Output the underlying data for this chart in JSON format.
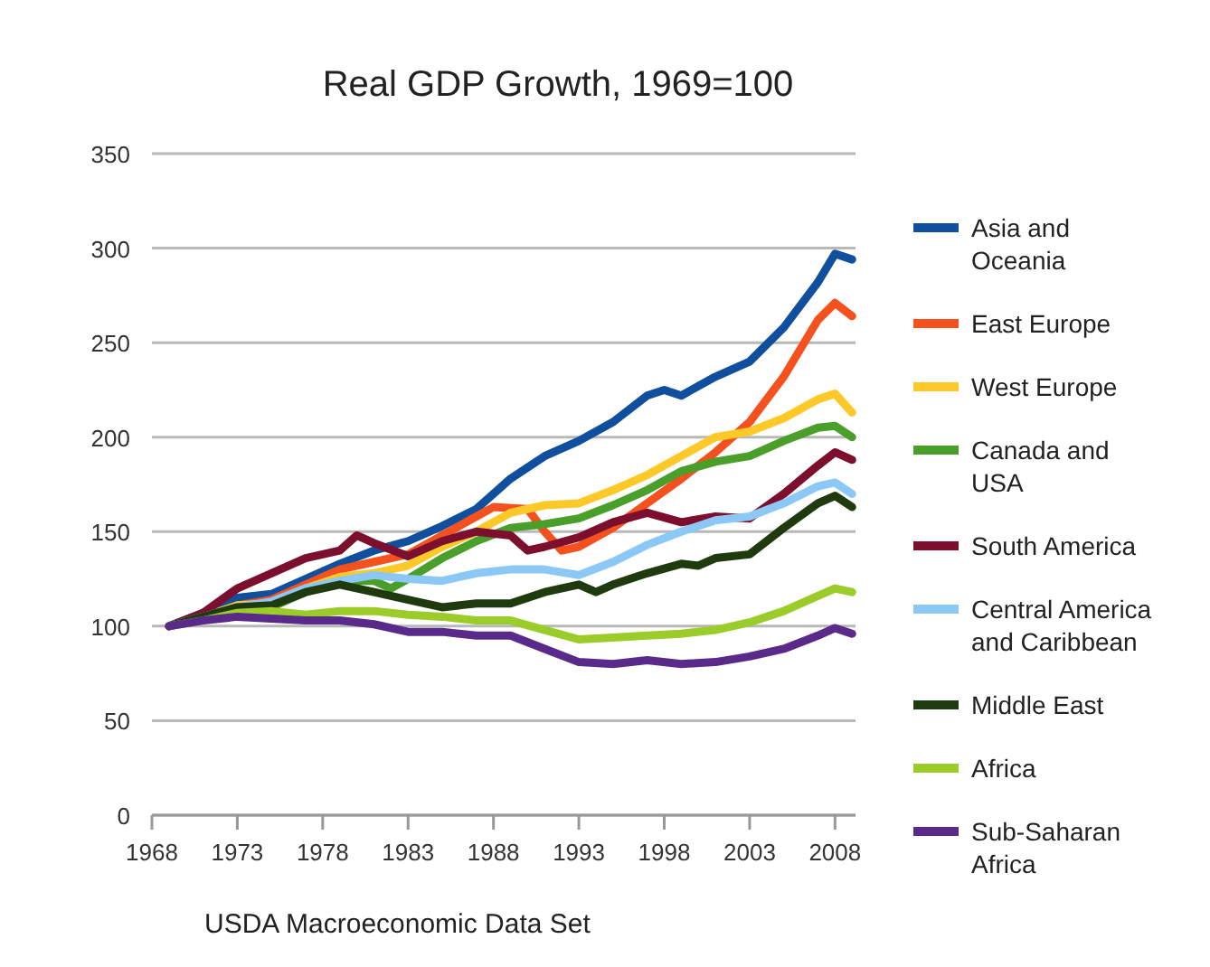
{
  "chart_data": {
    "type": "line",
    "title": "Real GDP Growth, 1969=100",
    "annotations": [
      "USDA Macroeconomic Data Set"
    ],
    "xlim": [
      1968,
      2009.2
    ],
    "xticks": [
      1968,
      1973,
      1978,
      1983,
      1988,
      1993,
      1998,
      2003,
      2008
    ],
    "ylim": [
      0,
      350
    ],
    "yticks": [
      0,
      50,
      100,
      150,
      200,
      250,
      300,
      350
    ],
    "grid": "y",
    "legend": "right",
    "line_style": "solid",
    "series": [
      {
        "name": "Asia and Oceania",
        "color": "#0f4f9e",
        "x": [
          1969,
          1971,
          1973,
          1975,
          1977,
          1979,
          1981,
          1983,
          1985,
          1987,
          1989,
          1991,
          1993,
          1995,
          1997,
          1998,
          1999,
          2001,
          2003,
          2005,
          2007,
          2008,
          2009
        ],
        "values": [
          100,
          107,
          115,
          117,
          125,
          133,
          140,
          145,
          153,
          162,
          178,
          190,
          198,
          208,
          222,
          225,
          222,
          232,
          240,
          258,
          282,
          297,
          294
        ]
      },
      {
        "name": "East Europe",
        "color": "#f4511e",
        "x": [
          1969,
          1971,
          1973,
          1975,
          1977,
          1979,
          1981,
          1983,
          1985,
          1987,
          1988,
          1990,
          1991,
          1992,
          1993,
          1995,
          1997,
          1999,
          2001,
          2003,
          2005,
          2007,
          2008,
          2009
        ],
        "values": [
          100,
          104,
          111,
          114,
          122,
          130,
          134,
          138,
          148,
          158,
          163,
          162,
          150,
          140,
          142,
          152,
          165,
          178,
          192,
          208,
          232,
          262,
          271,
          264
        ]
      },
      {
        "name": "West Europe",
        "color": "#fcc928",
        "x": [
          1969,
          1971,
          1973,
          1975,
          1977,
          1979,
          1981,
          1983,
          1985,
          1987,
          1989,
          1991,
          1993,
          1995,
          1997,
          1999,
          2001,
          2003,
          2005,
          2007,
          2008,
          2009
        ],
        "values": [
          100,
          105,
          111,
          112,
          120,
          126,
          128,
          132,
          142,
          150,
          160,
          164,
          165,
          172,
          180,
          190,
          200,
          203,
          210,
          220,
          223,
          213
        ]
      },
      {
        "name": "Canada and USA",
        "color": "#4a9e2a",
        "x": [
          1969,
          1971,
          1973,
          1975,
          1977,
          1979,
          1981,
          1982,
          1983,
          1985,
          1987,
          1989,
          1991,
          1993,
          1995,
          1997,
          1999,
          2001,
          2003,
          2005,
          2007,
          2008,
          2009
        ],
        "values": [
          100,
          104,
          109,
          110,
          118,
          124,
          124,
          120,
          125,
          136,
          145,
          152,
          154,
          157,
          164,
          172,
          182,
          187,
          190,
          198,
          205,
          206,
          200
        ]
      },
      {
        "name": "South America",
        "color": "#7d0f2e",
        "x": [
          1969,
          1971,
          1973,
          1975,
          1977,
          1979,
          1980,
          1981,
          1983,
          1985,
          1987,
          1989,
          1990,
          1991,
          1993,
          1995,
          1997,
          1999,
          2001,
          2003,
          2005,
          2007,
          2008,
          2009
        ],
        "values": [
          100,
          107,
          120,
          128,
          136,
          140,
          148,
          144,
          137,
          145,
          150,
          148,
          140,
          142,
          147,
          155,
          160,
          155,
          158,
          157,
          170,
          185,
          192,
          188
        ]
      },
      {
        "name": "Central America and Caribbean",
        "color": "#8cc8f5",
        "x": [
          1969,
          1971,
          1973,
          1975,
          1977,
          1979,
          1981,
          1983,
          1985,
          1987,
          1989,
          1991,
          1993,
          1995,
          1997,
          1999,
          2001,
          2003,
          2005,
          2007,
          2008,
          2009
        ],
        "values": [
          100,
          105,
          110,
          113,
          120,
          124,
          127,
          125,
          124,
          128,
          130,
          130,
          127,
          134,
          143,
          150,
          156,
          158,
          165,
          174,
          176,
          170
        ]
      },
      {
        "name": "Middle East",
        "color": "#1f3a0f",
        "x": [
          1969,
          1971,
          1973,
          1975,
          1977,
          1979,
          1981,
          1983,
          1985,
          1987,
          1989,
          1991,
          1993,
          1994,
          1995,
          1997,
          1999,
          2000,
          2001,
          2003,
          2005,
          2007,
          2008,
          2009
        ],
        "values": [
          100,
          105,
          110,
          111,
          118,
          122,
          118,
          114,
          110,
          112,
          112,
          118,
          122,
          118,
          122,
          128,
          133,
          132,
          136,
          138,
          152,
          165,
          169,
          163
        ]
      },
      {
        "name": "Africa",
        "color": "#9ccc2a",
        "x": [
          1969,
          1971,
          1973,
          1975,
          1977,
          1979,
          1981,
          1983,
          1985,
          1987,
          1989,
          1991,
          1993,
          1995,
          1997,
          1999,
          2001,
          2003,
          2005,
          2007,
          2008,
          2009
        ],
        "values": [
          100,
          103,
          107,
          108,
          106,
          108,
          108,
          106,
          105,
          103,
          103,
          98,
          93,
          94,
          95,
          96,
          98,
          102,
          108,
          116,
          120,
          118
        ]
      },
      {
        "name": "Sub-Saharan Africa",
        "color": "#5a2a8a",
        "x": [
          1969,
          1971,
          1973,
          1975,
          1977,
          1979,
          1981,
          1983,
          1985,
          1987,
          1989,
          1991,
          1993,
          1995,
          1997,
          1999,
          2001,
          2003,
          2005,
          2007,
          2008,
          2009
        ],
        "values": [
          100,
          103,
          105,
          104,
          103,
          103,
          101,
          97,
          97,
          95,
          95,
          88,
          81,
          80,
          82,
          80,
          81,
          84,
          88,
          95,
          99,
          96
        ]
      }
    ]
  }
}
